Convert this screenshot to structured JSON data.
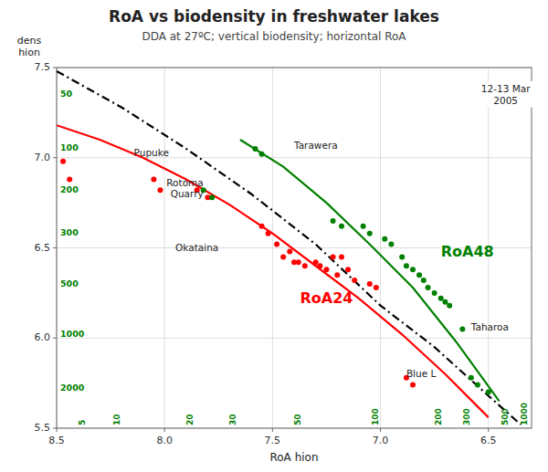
{
  "chart_data": {
    "type": "scatter",
    "title": "RoA vs biodensity in freshwater lakes",
    "subtitle": "DDA at 27ºC; vertical biodensity; horizontal RoA",
    "x_label": "RoA hion",
    "y_label": "dens\nhion",
    "xlim": [
      8.5,
      6.3
    ],
    "ylim": [
      5.5,
      7.5
    ],
    "xticks": [
      8.5,
      {
        "value": 8.0,
        "label": "8.0"
      },
      7.5,
      {
        "value": 7.0,
        "label": "7.0"
      },
      6.5
    ],
    "yticks": [
      5.5,
      {
        "value": 6.0,
        "label": "6.0"
      },
      6.5,
      {
        "value": 7.0,
        "label": "7.0"
      },
      7.5
    ],
    "grid": true,
    "series": [
      {
        "type": "scatter",
        "color": "red",
        "x": [
          8.47,
          8.44,
          8.05,
          8.02,
          7.85,
          7.8,
          7.55,
          7.52,
          7.48,
          7.45,
          7.42,
          7.4,
          7.38,
          7.35,
          7.3,
          7.28,
          7.25,
          7.22,
          7.2,
          7.18,
          7.15,
          7.12,
          7.05,
          7.02,
          6.88,
          6.85
        ],
        "values": [
          6.98,
          6.88,
          6.88,
          6.82,
          6.82,
          6.78,
          6.62,
          6.58,
          6.52,
          6.45,
          6.48,
          6.42,
          6.42,
          6.4,
          6.42,
          6.4,
          6.38,
          6.45,
          6.35,
          6.45,
          6.38,
          6.32,
          6.3,
          6.28,
          5.78,
          5.74
        ]
      },
      {
        "type": "scatter",
        "color": "green",
        "x": [
          7.58,
          7.55,
          7.82,
          7.78,
          7.22,
          7.18,
          7.08,
          7.05,
          6.98,
          6.95,
          6.9,
          6.88,
          6.85,
          6.82,
          6.8,
          6.78,
          6.75,
          6.72,
          6.7,
          6.68,
          6.58,
          6.55,
          6.5,
          6.62
        ],
        "values": [
          7.05,
          7.02,
          6.82,
          6.78,
          6.65,
          6.62,
          6.62,
          6.58,
          6.55,
          6.52,
          6.45,
          6.4,
          6.38,
          6.35,
          6.32,
          6.28,
          6.25,
          6.22,
          6.2,
          6.18,
          5.78,
          5.74,
          5.7,
          6.05
        ]
      },
      {
        "type": "line",
        "color": "red",
        "x": [
          8.5,
          8.3,
          8.1,
          7.9,
          7.7,
          7.5,
          7.3,
          7.1,
          6.9,
          6.7,
          6.5
        ],
        "values": [
          7.18,
          7.1,
          7.0,
          6.88,
          6.74,
          6.58,
          6.4,
          6.22,
          6.02,
          5.8,
          5.56
        ]
      },
      {
        "type": "line",
        "color": "green",
        "x": [
          7.65,
          7.45,
          7.25,
          7.05,
          6.85,
          6.65,
          6.45
        ],
        "values": [
          7.1,
          6.95,
          6.75,
          6.52,
          6.28,
          5.98,
          5.65
        ]
      },
      {
        "type": "line",
        "color": "black",
        "line_style": "dashdot",
        "x": [
          8.5,
          8.2,
          7.9,
          7.6,
          7.3,
          7.0,
          6.75,
          6.5,
          6.35
        ],
        "values": [
          7.48,
          7.28,
          7.05,
          6.8,
          6.52,
          6.18,
          5.95,
          5.68,
          5.52
        ]
      }
    ],
    "x_annotations": [
      {
        "text": "5",
        "x": 8.38,
        "color": "green"
      },
      {
        "text": "10",
        "x": 8.22,
        "color": "green"
      },
      {
        "text": "20",
        "x": 7.88,
        "color": "green"
      },
      {
        "text": "30",
        "x": 7.68,
        "color": "green"
      },
      {
        "text": "50",
        "x": 7.38,
        "color": "green"
      },
      {
        "text": "100",
        "x": 7.02,
        "color": "green"
      },
      {
        "text": "200",
        "x": 6.73,
        "color": "green"
      },
      {
        "text": "300",
        "x": 6.6,
        "color": "green"
      },
      {
        "text": "500",
        "x": 6.42,
        "color": "green"
      },
      {
        "text": "1000",
        "x": 6.33,
        "color": "green"
      }
    ],
    "y_annotations": [
      {
        "text": "50",
        "y": 7.35,
        "color": "green"
      },
      {
        "text": "100",
        "y": 7.05,
        "color": "green"
      },
      {
        "text": "200",
        "y": 6.82,
        "color": "green"
      },
      {
        "text": "300",
        "y": 6.58,
        "color": "green"
      },
      {
        "text": "500",
        "y": 6.3,
        "color": "green"
      },
      {
        "text": "1000",
        "y": 6.02,
        "color": "green"
      },
      {
        "text": "2000",
        "y": 5.72,
        "color": "green"
      }
    ],
    "annotations": [
      {
        "text": "Pupuke",
        "x": 7.98,
        "y": 7.03,
        "align": "right"
      },
      {
        "text": "Tarawera",
        "x": 7.4,
        "y": 7.07,
        "align": "left"
      },
      {
        "text": "Rotoma",
        "x": 7.82,
        "y": 6.86,
        "align": "right"
      },
      {
        "text": "Quarry",
        "x": 7.82,
        "y": 6.8,
        "align": "right"
      },
      {
        "text": "Okataina",
        "x": 7.75,
        "y": 6.5,
        "align": "right"
      },
      {
        "text": "RoA24",
        "x": 7.25,
        "y": 6.22,
        "align": "center",
        "color": "red"
      },
      {
        "text": "RoA48",
        "x": 6.72,
        "y": 6.48,
        "align": "left",
        "color": "green"
      },
      {
        "text": "Taharoa",
        "x": 6.58,
        "y": 6.06,
        "align": "left"
      },
      {
        "text": "Blue L",
        "x": 6.88,
        "y": 5.8,
        "align": "left"
      },
      {
        "text": "12-13 Mar\n2005",
        "x": 6.42,
        "y": 7.35,
        "align": "center"
      }
    ]
  }
}
